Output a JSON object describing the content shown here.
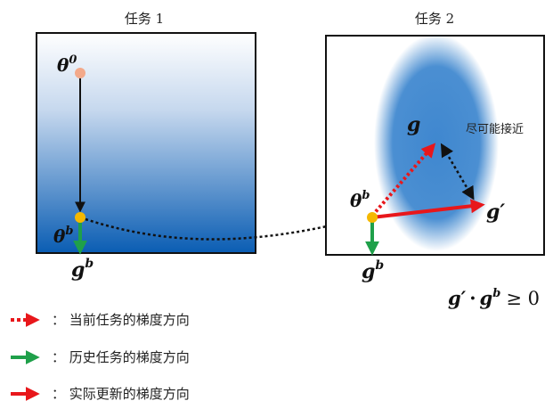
{
  "task1": {
    "title": "任务 1",
    "theta0": "θ",
    "theta0_sup": "0",
    "thetab": "θ",
    "thetab_sup": "b",
    "gb": "g",
    "gb_sup": "b",
    "gradient_colors": [
      "#ffffff",
      "#0a5db3"
    ]
  },
  "task2": {
    "title": "任务 2",
    "thetab": "θ",
    "thetab_sup": "b",
    "g": "g",
    "g_prime": "g′",
    "gb": "g",
    "gb_sup": "b",
    "closeness_label": "尽可能接近",
    "blob_color": "#3f87cf"
  },
  "formula": {
    "g_prime": "g′",
    "dot": "·",
    "g": "g",
    "sup": "b",
    "relation": "≥ 0"
  },
  "legend": {
    "items": [
      {
        "label": "：  当前任务的梯度方向",
        "color": "#e8171b",
        "style": "dotted"
      },
      {
        "label": "：  历史任务的梯度方向",
        "color": "#1fa04a",
        "style": "solid"
      },
      {
        "label": "：  实际更新的梯度方向",
        "color": "#e8171b",
        "style": "solid"
      }
    ]
  },
  "colors": {
    "current_grad": "#e8171b",
    "history_grad": "#1fa04a",
    "actual_grad": "#e8171b",
    "point_start": "#f3a98a",
    "point_theta": "#f5b800"
  }
}
